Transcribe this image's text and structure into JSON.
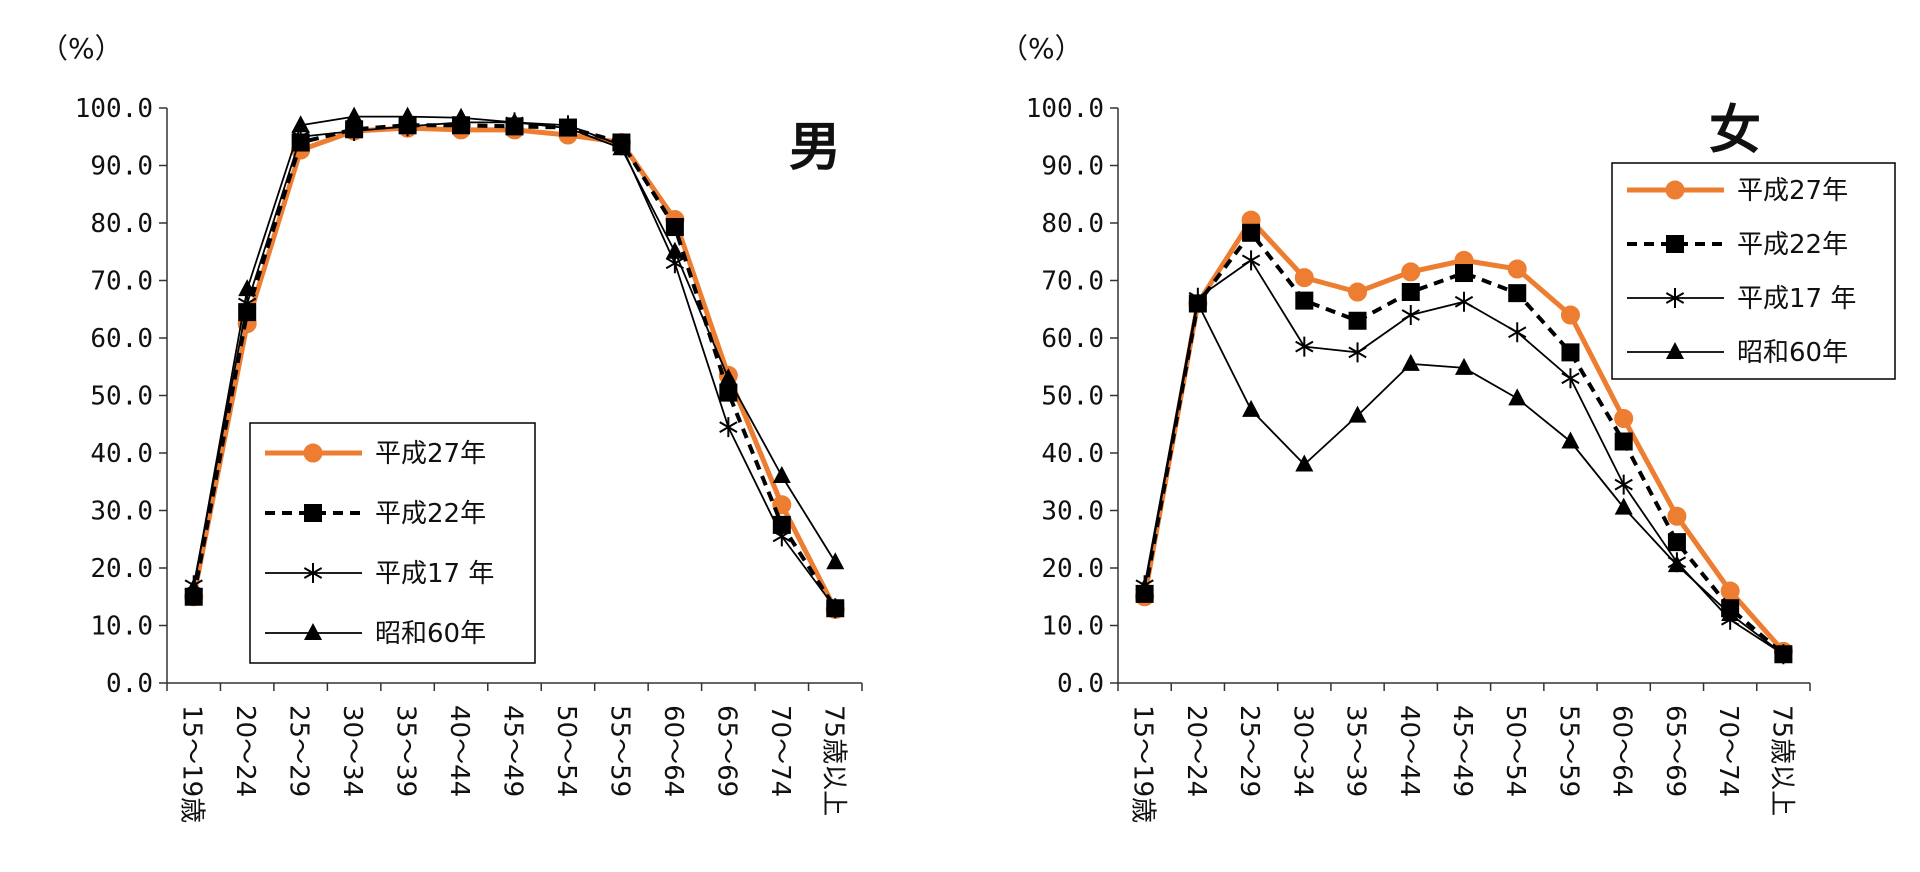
{
  "chart_data": [
    {
      "type": "line",
      "title": "男",
      "ylabel": "（%）",
      "ylim": [
        0,
        100
      ],
      "yticks": [
        "0.0",
        "10.0",
        "20.0",
        "30.0",
        "40.0",
        "50.0",
        "60.0",
        "70.0",
        "80.0",
        "90.0",
        "100.0"
      ],
      "categories": [
        "15～19歳",
        "20～24",
        "25～29",
        "30～34",
        "35～39",
        "40～44",
        "45～49",
        "50～54",
        "55～59",
        "60～64",
        "65～69",
        "70～74",
        "75歳以上"
      ],
      "legend_position": "bottom-left",
      "series": [
        {
          "name": "平成27年",
          "values": [
            15.0,
            62.5,
            92.7,
            96.0,
            96.5,
            96.2,
            96.2,
            95.3,
            94.0,
            80.6,
            53.5,
            31.0,
            12.8
          ]
        },
        {
          "name": "平成22年",
          "values": [
            15.0,
            64.5,
            94.0,
            96.3,
            97.0,
            97.0,
            96.8,
            96.6,
            94.0,
            79.3,
            50.5,
            27.5,
            13.0
          ]
        },
        {
          "name": "平成17 年",
          "values": [
            17.0,
            66.0,
            95.0,
            96.0,
            96.8,
            97.5,
            97.5,
            97.0,
            93.5,
            73.0,
            44.5,
            25.5,
            13.0
          ]
        },
        {
          "name": "昭和60年",
          "values": [
            16.5,
            68.5,
            97.0,
            98.5,
            98.5,
            98.3,
            97.5,
            96.5,
            93.0,
            75.0,
            53.0,
            36.0,
            21.0
          ]
        }
      ]
    },
    {
      "type": "line",
      "title": "女",
      "ylabel": "（%）",
      "ylim": [
        0,
        100
      ],
      "yticks": [
        "0.0",
        "10.0",
        "20.0",
        "30.0",
        "40.0",
        "50.0",
        "60.0",
        "70.0",
        "80.0",
        "90.0",
        "100.0"
      ],
      "categories": [
        "15～19歳",
        "20～24",
        "25～29",
        "30～34",
        "35～39",
        "40～44",
        "45～49",
        "50～54",
        "55～59",
        "60～64",
        "65～69",
        "70～74",
        "75歳以上"
      ],
      "legend_position": "top-right",
      "series": [
        {
          "name": "平成27年",
          "values": [
            15.0,
            66.0,
            80.5,
            70.5,
            68.0,
            71.5,
            73.5,
            72.0,
            64.0,
            46.0,
            29.0,
            16.0,
            5.5
          ]
        },
        {
          "name": "平成22年",
          "values": [
            15.5,
            66.0,
            78.3,
            66.5,
            63.0,
            68.0,
            71.3,
            67.8,
            57.5,
            42.0,
            24.5,
            13.0,
            5.0
          ]
        },
        {
          "name": "平成17 年",
          "values": [
            17.0,
            67.0,
            73.5,
            58.5,
            57.5,
            64.0,
            66.3,
            61.0,
            53.0,
            34.5,
            21.0,
            11.0,
            5.0
          ]
        },
        {
          "name": "昭和60年",
          "values": [
            16.5,
            66.0,
            47.5,
            38.0,
            46.5,
            55.5,
            54.8,
            49.5,
            42.0,
            30.5,
            20.5,
            12.0,
            5.0
          ]
        }
      ]
    }
  ],
  "style": {
    "series_colors": [
      "#ED7D31",
      "#000000",
      "#000000",
      "#000000"
    ],
    "series_markers": [
      "circle",
      "square",
      "asterisk",
      "triangle"
    ],
    "series_dash": [
      "solid",
      "dashed",
      "solid",
      "solid"
    ]
  }
}
